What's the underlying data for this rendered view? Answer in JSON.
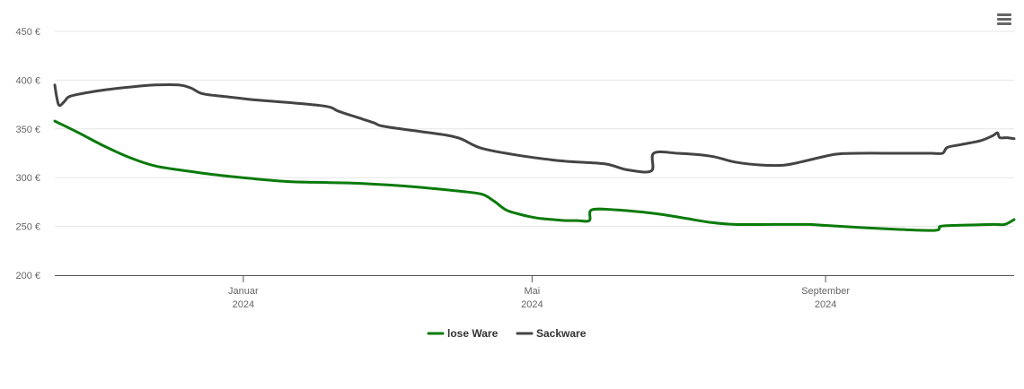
{
  "menu": {
    "icon": "hamburger-menu-icon"
  },
  "chart_data": {
    "type": "line",
    "title": "",
    "xlabel": "",
    "ylabel": "",
    "ylim": [
      200,
      450
    ],
    "yticks": [
      {
        "value": 200,
        "label": "200 €"
      },
      {
        "value": 250,
        "label": "250 €"
      },
      {
        "value": 300,
        "label": "300 €"
      },
      {
        "value": 350,
        "label": "350 €"
      },
      {
        "value": 400,
        "label": "400 €"
      },
      {
        "value": 450,
        "label": "450 €"
      }
    ],
    "xlim": [
      "2023-10-14",
      "2024-11-19"
    ],
    "xticks": [
      {
        "date": "2024-01-01",
        "label": "Januar",
        "sublabel": "2024"
      },
      {
        "date": "2024-05-01",
        "label": "Mai",
        "sublabel": "2024"
      },
      {
        "date": "2024-09-01",
        "label": "September",
        "sublabel": "2024"
      }
    ],
    "grid": true,
    "legend_position": "bottom-center",
    "series": [
      {
        "name": "lose Ware",
        "color": "#0a7a0a",
        "points": [
          [
            "2023-10-14",
            358
          ],
          [
            "2023-10-24",
            346
          ],
          [
            "2023-11-04",
            332
          ],
          [
            "2023-11-15",
            320
          ],
          [
            "2023-11-25",
            312
          ],
          [
            "2023-12-05",
            308
          ],
          [
            "2023-12-20",
            303
          ],
          [
            "2024-01-05",
            299
          ],
          [
            "2024-01-20",
            296
          ],
          [
            "2024-02-05",
            295
          ],
          [
            "2024-02-20",
            294
          ],
          [
            "2024-03-05",
            292
          ],
          [
            "2024-03-20",
            289
          ],
          [
            "2024-04-01",
            286
          ],
          [
            "2024-04-10",
            283
          ],
          [
            "2024-04-15",
            276
          ],
          [
            "2024-04-20",
            267
          ],
          [
            "2024-04-25",
            263
          ],
          [
            "2024-04-30",
            260
          ],
          [
            "2024-05-05",
            258
          ],
          [
            "2024-05-10",
            257
          ],
          [
            "2024-05-15",
            256
          ],
          [
            "2024-05-20",
            256
          ],
          [
            "2024-05-25",
            256
          ],
          [
            "2024-05-26",
            267
          ],
          [
            "2024-06-05",
            267
          ],
          [
            "2024-06-15",
            265
          ],
          [
            "2024-06-25",
            262
          ],
          [
            "2024-07-05",
            258
          ],
          [
            "2024-07-15",
            254
          ],
          [
            "2024-07-25",
            252
          ],
          [
            "2024-08-10",
            252
          ],
          [
            "2024-08-25",
            252
          ],
          [
            "2024-09-01",
            251
          ],
          [
            "2024-09-15",
            249
          ],
          [
            "2024-10-01",
            247
          ],
          [
            "2024-10-17",
            246
          ],
          [
            "2024-10-19",
            250
          ],
          [
            "2024-10-24",
            251
          ],
          [
            "2024-11-10",
            252
          ],
          [
            "2024-11-15",
            252
          ],
          [
            "2024-11-19",
            257
          ]
        ]
      },
      {
        "name": "Sackware",
        "color": "#444444",
        "points": [
          [
            "2023-10-14",
            395
          ],
          [
            "2023-10-15",
            380
          ],
          [
            "2023-10-16",
            374
          ],
          [
            "2023-10-18",
            378
          ],
          [
            "2023-10-20",
            383
          ],
          [
            "2023-10-25",
            386
          ],
          [
            "2023-11-04",
            390
          ],
          [
            "2023-11-15",
            393
          ],
          [
            "2023-11-25",
            395
          ],
          [
            "2023-12-05",
            395
          ],
          [
            "2023-12-10",
            392
          ],
          [
            "2023-12-15",
            386
          ],
          [
            "2023-12-25",
            383
          ],
          [
            "2024-01-05",
            380
          ],
          [
            "2024-01-20",
            377
          ],
          [
            "2024-02-05",
            373
          ],
          [
            "2024-02-10",
            368
          ],
          [
            "2024-02-20",
            360
          ],
          [
            "2024-02-25",
            356
          ],
          [
            "2024-02-28",
            353
          ],
          [
            "2024-03-10",
            349
          ],
          [
            "2024-03-25",
            344
          ],
          [
            "2024-04-01",
            340
          ],
          [
            "2024-04-10",
            330
          ],
          [
            "2024-04-25",
            323
          ],
          [
            "2024-05-10",
            318
          ],
          [
            "2024-05-20",
            316
          ],
          [
            "2024-06-01",
            314
          ],
          [
            "2024-06-10",
            308
          ],
          [
            "2024-06-20",
            307
          ],
          [
            "2024-06-21",
            325
          ],
          [
            "2024-07-01",
            325
          ],
          [
            "2024-07-15",
            322
          ],
          [
            "2024-07-25",
            316
          ],
          [
            "2024-08-05",
            313
          ],
          [
            "2024-08-15",
            313
          ],
          [
            "2024-08-25",
            318
          ],
          [
            "2024-09-05",
            324
          ],
          [
            "2024-09-15",
            325
          ],
          [
            "2024-10-01",
            325
          ],
          [
            "2024-10-15",
            325
          ],
          [
            "2024-10-20",
            325
          ],
          [
            "2024-10-22",
            331
          ],
          [
            "2024-10-28",
            334
          ],
          [
            "2024-11-05",
            338
          ],
          [
            "2024-11-10",
            343
          ],
          [
            "2024-11-12",
            346
          ],
          [
            "2024-11-13",
            341
          ],
          [
            "2024-11-16",
            341
          ],
          [
            "2024-11-19",
            340
          ]
        ]
      }
    ]
  }
}
